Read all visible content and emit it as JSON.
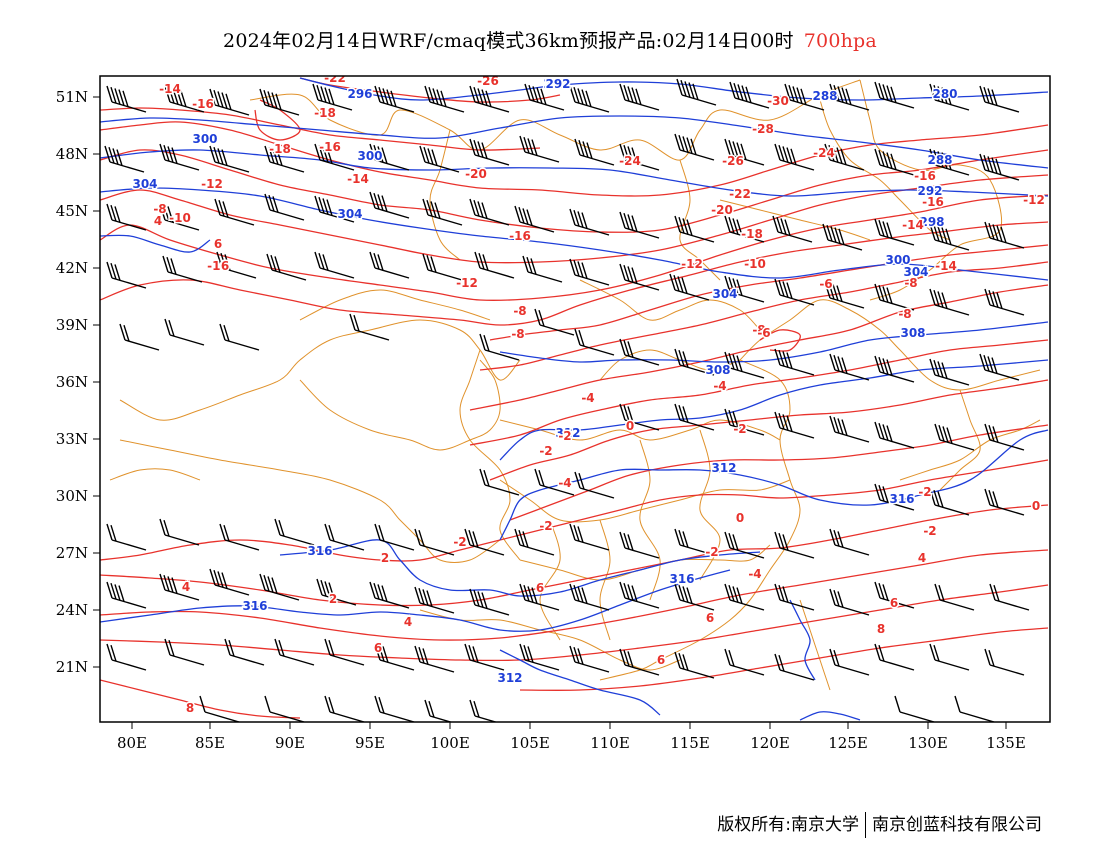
{
  "title": {
    "main": "2024年02月14日WRF/cmaq模式36km预报产品:02月14日00时",
    "level": "700hpa"
  },
  "axes": {
    "lon_labels": [
      "80E",
      "85E",
      "90E",
      "95E",
      "100E",
      "105E",
      "110E",
      "115E",
      "120E",
      "125E",
      "130E",
      "135E"
    ],
    "lat_labels": [
      "51N",
      "48N",
      "45N",
      "42N",
      "39N",
      "36N",
      "33N",
      "30N",
      "27N",
      "24N",
      "21N"
    ]
  },
  "contours": {
    "height_labels": [
      "292",
      "296",
      "300",
      "300",
      "304",
      "304",
      "292",
      "288",
      "280",
      "288",
      "292",
      "298",
      "300",
      "304",
      "304",
      "308",
      "308",
      "312",
      "312",
      "316",
      "316",
      "316",
      "316",
      "312"
    ],
    "temperature_labels": [
      "-22",
      "-26",
      "-14",
      "-16",
      "-18",
      "-18",
      "-16",
      "-14",
      "-12",
      "-10",
      "-30",
      "-28",
      "-26",
      "-24",
      "-24",
      "-20",
      "-22",
      "-20",
      "-18",
      "-16",
      "-16",
      "-16",
      "-14",
      "-12",
      "-12",
      "-10",
      "-8",
      "-6",
      "-8",
      "-12",
      "-14",
      "-8",
      "-8",
      "-8",
      "-10",
      "-8",
      "-4",
      "-6",
      "-4",
      "-2",
      "-2",
      "-2",
      "0",
      "-2",
      "-2",
      "0",
      "-2",
      "0",
      "-2",
      "-4",
      "2",
      "4",
      "-4",
      "-2",
      "6",
      "4",
      "2",
      "4",
      "6",
      "6",
      "6",
      "6",
      "8",
      "4",
      "6",
      "8",
      "6"
    ]
  },
  "footer": {
    "copyright": "版权所有:南京大学",
    "company": "南京创蓝科技有限公司"
  },
  "colors": {
    "temperature": "#e8322c",
    "height": "#1f3fd8",
    "boundary": "#e0922c",
    "barb": "#000000"
  }
}
